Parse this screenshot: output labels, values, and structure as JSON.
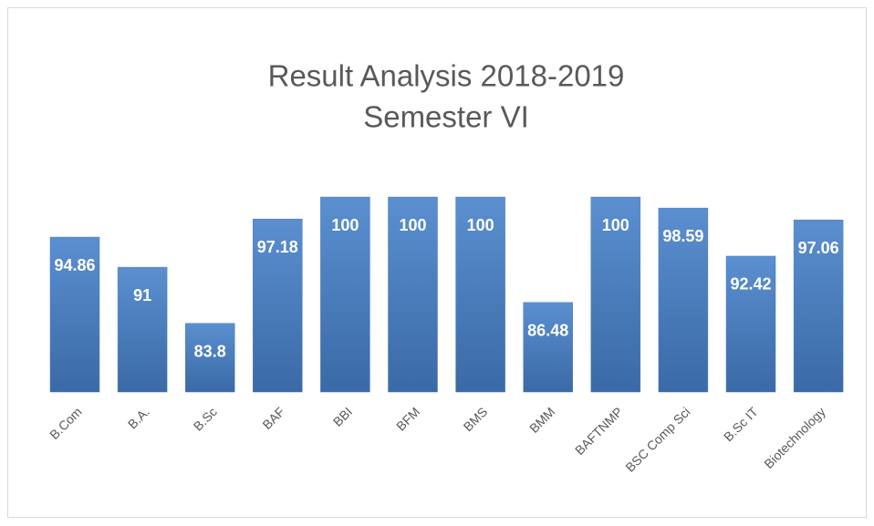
{
  "chart_data": {
    "type": "bar",
    "title": "Result Analysis 2018-2019",
    "subtitle": "Semester VI",
    "categories": [
      "B.Com",
      "B.A.",
      "B.Sc",
      "BAF",
      "BBI",
      "BFM",
      "BMS",
      "BMM",
      "BAFTNMP",
      "BSC Comp Sci",
      "B.Sc IT",
      "Biotechnology"
    ],
    "values": [
      94.86,
      91,
      83.8,
      97.18,
      100,
      100,
      100,
      86.48,
      100,
      98.59,
      92.42,
      97.06
    ],
    "color": "#4a7ebb",
    "ylim": [
      75,
      102
    ]
  }
}
